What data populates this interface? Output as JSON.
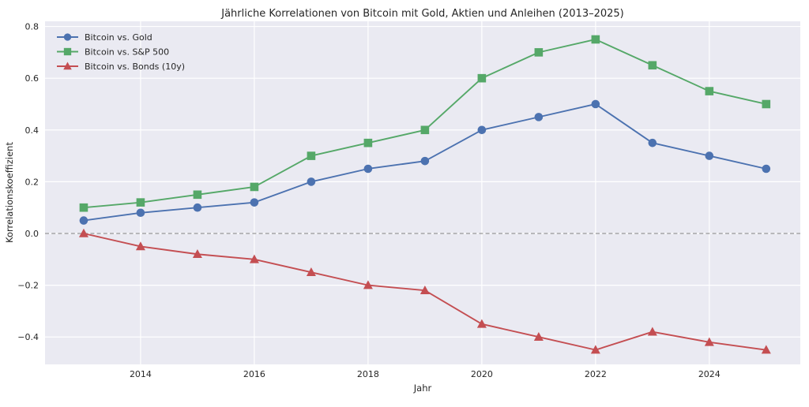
{
  "figure": {
    "background": "#ffffff"
  },
  "chart_data": {
    "type": "line",
    "title": "Jährliche Korrelationen von Bitcoin mit Gold, Aktien und Anleihen (2013–2025)",
    "xlabel": "Jahr",
    "ylabel": "Korrelationskoeffizient",
    "x": [
      2013,
      2014,
      2015,
      2016,
      2017,
      2018,
      2019,
      2020,
      2021,
      2022,
      2023,
      2024,
      2025
    ],
    "series": [
      {
        "name": "Bitcoin vs. Gold",
        "color": "#4C72B0",
        "marker": "circle",
        "values": [
          0.05,
          0.08,
          0.1,
          0.12,
          0.2,
          0.25,
          0.28,
          0.4,
          0.45,
          0.5,
          0.35,
          0.3,
          0.25
        ]
      },
      {
        "name": "Bitcoin vs. S&P 500",
        "color": "#55A868",
        "marker": "square",
        "values": [
          0.1,
          0.12,
          0.15,
          0.18,
          0.3,
          0.35,
          0.4,
          0.6,
          0.7,
          0.75,
          0.65,
          0.55,
          0.5
        ]
      },
      {
        "name": "Bitcoin vs. Bonds (10y)",
        "color": "#C44E52",
        "marker": "triangle",
        "values": [
          0.0,
          -0.05,
          -0.08,
          -0.1,
          -0.15,
          -0.2,
          -0.22,
          -0.35,
          -0.4,
          -0.45,
          -0.38,
          -0.42,
          -0.45
        ]
      }
    ],
    "xlim": [
      2012.32,
      2025.6
    ],
    "ylim": [
      -0.506,
      0.82
    ],
    "xticks": {
      "values": [
        2014,
        2016,
        2018,
        2020,
        2022,
        2024
      ],
      "labels": [
        "2014",
        "2016",
        "2018",
        "2020",
        "2022",
        "2024"
      ]
    },
    "yticks": {
      "values": [
        0.8,
        0.6,
        0.4,
        0.2,
        0.0,
        -0.2,
        -0.4
      ],
      "labels": [
        "0.8",
        "0.6",
        "0.4",
        "0.2",
        "0.0",
        "−0.2",
        "−0.4"
      ]
    },
    "zero_line": {
      "value": 0.0,
      "color": "#7f7f7f",
      "dash": "5 3.2"
    },
    "style": {
      "plot_bg": "#EAEAF2",
      "grid_color": "#ffffff",
      "text_color": "#262626"
    },
    "legend": {
      "position": "upper-left"
    }
  }
}
